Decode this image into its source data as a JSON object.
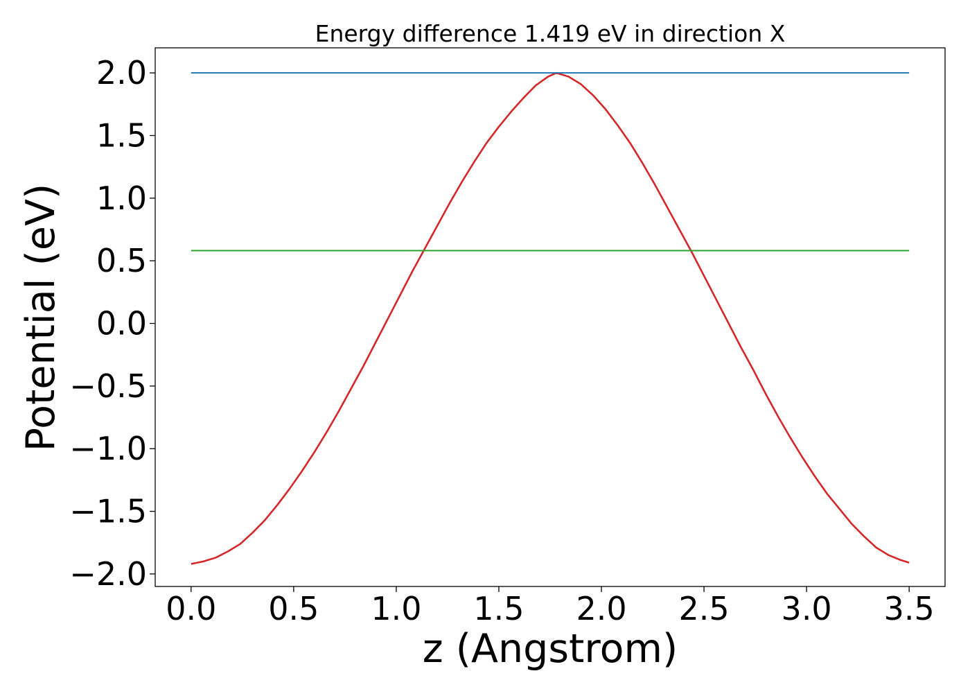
{
  "chart_data": {
    "type": "line",
    "title": "Energy difference 1.419 eV in direction X",
    "xlabel": "z (Angstrom)",
    "ylabel": "Potential (eV)",
    "xlim": [
      -0.175,
      3.675
    ],
    "ylim": [
      -2.1,
      2.2
    ],
    "xticks": [
      0.0,
      0.5,
      1.0,
      1.5,
      2.0,
      2.5,
      3.0,
      3.5
    ],
    "xtick_labels": [
      "0.0",
      "0.5",
      "1.0",
      "1.5",
      "2.0",
      "2.5",
      "3.0",
      "3.5"
    ],
    "yticks": [
      2.0,
      1.5,
      1.0,
      0.5,
      0.0,
      -0.5,
      -1.0,
      -1.5,
      -2.0
    ],
    "ytick_labels": [
      "2.0",
      "1.5",
      "1.0",
      "0.5",
      "0.0",
      "−0.5",
      "−1.0",
      "−1.5",
      "−2.0"
    ],
    "grid": false,
    "series": [
      {
        "color": "#d62728",
        "x": [
          0.0,
          0.06,
          0.12,
          0.18,
          0.24,
          0.3,
          0.36,
          0.42,
          0.48,
          0.54,
          0.6,
          0.66,
          0.72,
          0.78,
          0.84,
          0.9,
          0.96,
          1.02,
          1.08,
          1.14,
          1.2,
          1.26,
          1.32,
          1.38,
          1.44,
          1.5,
          1.56,
          1.62,
          1.68,
          1.74,
          1.78,
          1.84,
          1.9,
          1.96,
          2.02,
          2.08,
          2.14,
          2.2,
          2.26,
          2.32,
          2.38,
          2.44,
          2.5,
          2.56,
          2.62,
          2.68,
          2.74,
          2.8,
          2.86,
          2.92,
          2.98,
          3.04,
          3.1,
          3.16,
          3.22,
          3.28,
          3.34,
          3.4,
          3.46,
          3.5
        ],
        "y": [
          -1.92,
          -1.9,
          -1.87,
          -1.82,
          -1.76,
          -1.67,
          -1.57,
          -1.45,
          -1.32,
          -1.18,
          -1.03,
          -0.87,
          -0.7,
          -0.52,
          -0.34,
          -0.15,
          0.04,
          0.23,
          0.42,
          0.6,
          0.78,
          0.96,
          1.13,
          1.29,
          1.44,
          1.57,
          1.69,
          1.8,
          1.9,
          1.97,
          2.0,
          1.97,
          1.91,
          1.82,
          1.71,
          1.58,
          1.44,
          1.28,
          1.11,
          0.93,
          0.75,
          0.57,
          0.38,
          0.19,
          0.0,
          -0.19,
          -0.37,
          -0.56,
          -0.74,
          -0.91,
          -1.07,
          -1.22,
          -1.36,
          -1.48,
          -1.6,
          -1.7,
          -1.79,
          -1.85,
          -1.89,
          -1.91
        ]
      },
      {
        "color": "#1f77b4",
        "x": [
          0.0,
          3.5
        ],
        "y": [
          2.0,
          2.0
        ]
      },
      {
        "color": "#2ca02c",
        "x": [
          0.0,
          3.5
        ],
        "y": [
          0.581,
          0.581
        ]
      }
    ]
  }
}
